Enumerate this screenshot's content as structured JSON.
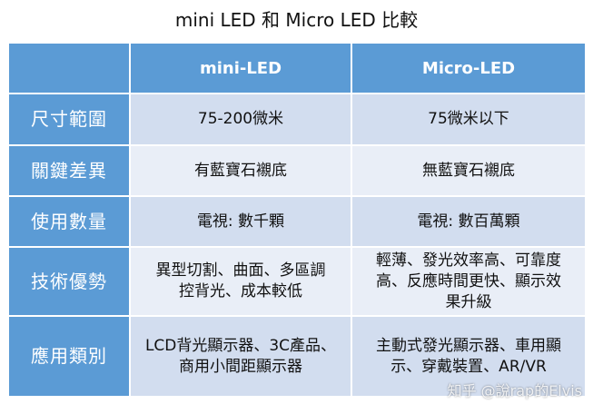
{
  "title": "mini LED 和 Micro LED 比較",
  "table": {
    "header": [
      "",
      "mini-LED",
      "Micro-LED"
    ],
    "rows": [
      {
        "label": "尺寸範圍",
        "cells": [
          [
            "75-200微米"
          ],
          [
            "75微米以下"
          ]
        ]
      },
      {
        "label": "關鍵差異",
        "cells": [
          [
            "有藍寶石襯底"
          ],
          [
            "無藍寶石襯底"
          ]
        ]
      },
      {
        "label": "使用數量",
        "cells": [
          [
            "電視: 數千顆"
          ],
          [
            "電視: 數百萬顆"
          ]
        ]
      },
      {
        "label": "技術優勢",
        "cells": [
          [
            "異型切割、曲面、多區調",
            "控背光、成本較低"
          ],
          [
            "輕薄、發光效率高、可靠度",
            "高、反應時間更快、顯示效",
            "果升級"
          ]
        ]
      },
      {
        "label": "應用類別",
        "cells": [
          [
            "LCD背光顯示器、3C產品、",
            "商用小間距顯示器"
          ],
          [
            "主動式發光顯示器、車用顯",
            "示、穿戴裝置、AR/VR"
          ]
        ]
      }
    ]
  },
  "watermark": "知乎 @說rap的Elvis"
}
